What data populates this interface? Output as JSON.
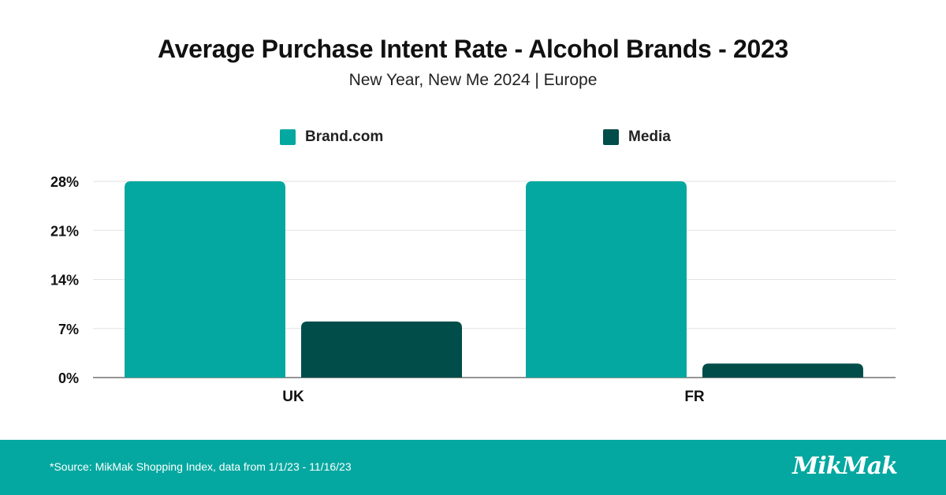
{
  "header": {
    "title": "Average Purchase Intent Rate - Alcohol Brands - 2023",
    "subtitle": "New Year, New Me 2024 | Europe"
  },
  "footer": {
    "source": "*Source: MikMak Shopping Index, data from 1/1/23 - 11/16/23",
    "logo_text": "MikMak"
  },
  "colors": {
    "brand": "#05a8a0",
    "media": "#004d4a",
    "grid": "#e2e2e2",
    "footer_bg": "#05a8a0"
  },
  "chart_data": {
    "type": "bar",
    "title": "Average Purchase Intent Rate - Alcohol Brands - 2023",
    "subtitle": "New Year, New Me 2024 | Europe",
    "categories": [
      "UK",
      "FR"
    ],
    "series": [
      {
        "name": "Brand.com",
        "values": [
          28,
          28
        ],
        "color": "#05a8a0"
      },
      {
        "name": "Media",
        "values": [
          8,
          2
        ],
        "color": "#004d4a"
      }
    ],
    "yticks": [
      "0%",
      "7%",
      "14%",
      "21%",
      "28%"
    ],
    "ylim": [
      0,
      28
    ],
    "ytick_values": [
      0,
      7,
      14,
      21,
      28
    ],
    "grid": true,
    "legend": "top-center",
    "xlabel": "",
    "ylabel": ""
  }
}
